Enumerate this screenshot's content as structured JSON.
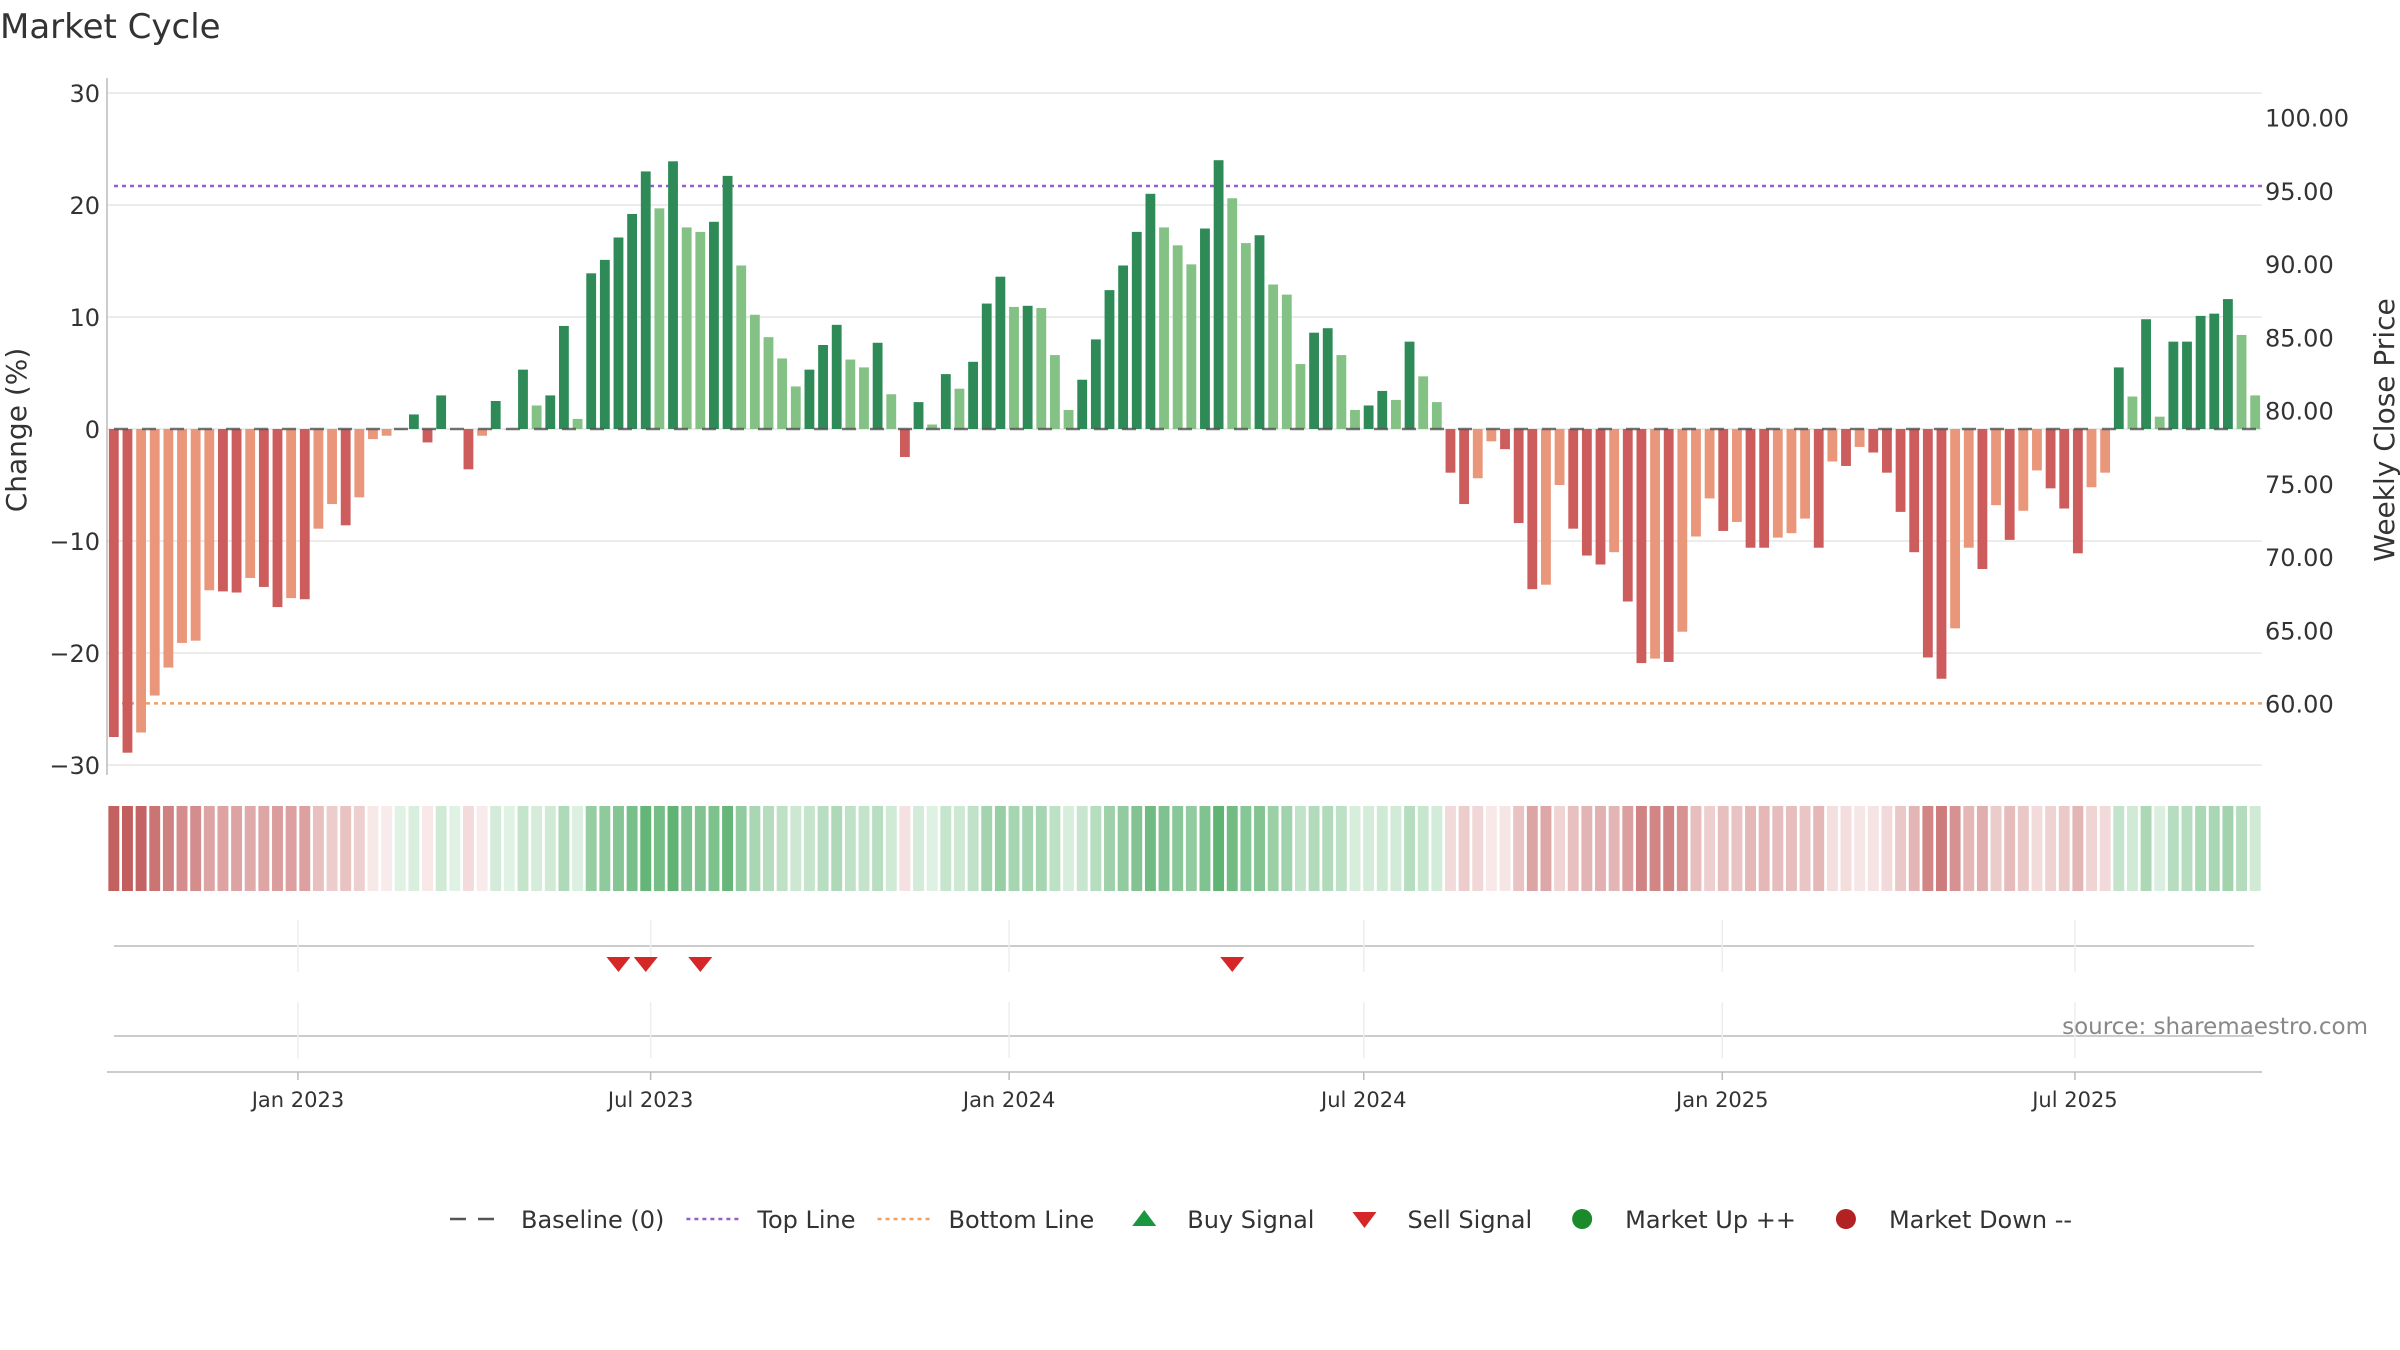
{
  "chart_data": {
    "type": "bar",
    "title": "Market Cycle",
    "ylabel_left": "Change (%)",
    "ylabel_right": "Weekly Close Price",
    "ylim_left": [
      -30,
      30
    ],
    "ylim_right": [
      55,
      100
    ],
    "left_ticks": [
      "30",
      "20",
      "10",
      "0",
      "−10",
      "−20",
      "−30"
    ],
    "left_tick_values": [
      30,
      20,
      10,
      0,
      -10,
      -20,
      -30
    ],
    "right_ticks": [
      "100.00",
      "95.00",
      "90.00",
      "85.00",
      "80.00",
      "75.00",
      "70.00",
      "65.00",
      "60.00"
    ],
    "right_tick_values": [
      100,
      95,
      90,
      85,
      80,
      75,
      70,
      65,
      60
    ],
    "x_start": "2022-09-25",
    "x_ticks": [
      {
        "label": "Jan 2023",
        "date": "2023-01-01"
      },
      {
        "label": "Jul 2023",
        "date": "2023-07-01"
      },
      {
        "label": "Jan 2024",
        "date": "2024-01-01"
      },
      {
        "label": "Jul 2024",
        "date": "2024-07-01"
      },
      {
        "label": "Jan 2025",
        "date": "2025-01-01"
      },
      {
        "label": "Jul 2025",
        "date": "2025-07-01"
      }
    ],
    "top_line": 21.7,
    "bottom_line": -24.5,
    "values": [
      -27.5,
      -28.9,
      -27.1,
      -23.8,
      -21.3,
      -19.1,
      -18.9,
      -14.4,
      -14.5,
      -14.6,
      -13.3,
      -14.1,
      -15.9,
      -15.1,
      -15.2,
      -8.9,
      -6.7,
      -8.6,
      -6.1,
      -0.9,
      -0.6,
      0.0,
      1.3,
      -1.2,
      3.0,
      0.0,
      -3.6,
      -0.6,
      2.5,
      0.0,
      5.3,
      2.1,
      3.0,
      9.2,
      0.9,
      13.9,
      15.1,
      17.1,
      19.2,
      23.0,
      19.7,
      23.9,
      18.0,
      17.6,
      18.5,
      22.6,
      14.6,
      10.2,
      8.2,
      6.3,
      3.8,
      5.3,
      7.5,
      9.3,
      6.2,
      5.5,
      7.7,
      3.1,
      -2.5,
      2.4,
      0.4,
      4.9,
      3.6,
      6.0,
      11.2,
      13.6,
      10.9,
      11.0,
      10.8,
      6.6,
      1.7,
      4.4,
      8.0,
      12.4,
      14.6,
      17.6,
      21.0,
      18.0,
      16.4,
      14.7,
      17.9,
      24.0,
      20.6,
      16.6,
      17.3,
      12.9,
      12.0,
      5.8,
      8.6,
      9.0,
      6.6,
      1.7,
      2.1,
      3.4,
      2.6,
      7.8,
      4.7,
      2.4,
      -3.9,
      -6.7,
      -4.4,
      -1.1,
      -1.8,
      -8.4,
      -14.3,
      -13.9,
      -5.0,
      -8.9,
      -11.3,
      -12.1,
      -11.0,
      -15.4,
      -20.9,
      -20.5,
      -20.8,
      -18.1,
      -9.6,
      -6.2,
      -9.1,
      -8.3,
      -10.6,
      -10.6,
      -9.7,
      -9.3,
      -8.0,
      -10.6,
      -2.9,
      -3.3,
      -1.6,
      -2.1,
      -3.9,
      -7.4,
      -11.0,
      -20.4,
      -22.3,
      -17.8,
      -10.6,
      -12.5,
      -6.8,
      -9.9,
      -7.3,
      -3.7,
      -5.3,
      -7.1,
      -11.1,
      -5.2,
      -3.9,
      5.5,
      2.9,
      9.8,
      1.1,
      7.8,
      7.8,
      10.1,
      10.3,
      11.6,
      8.4,
      3.0
    ],
    "sell_signals": [
      "2023-06-11",
      "2023-06-25",
      "2023-07-23",
      "2024-04-21"
    ],
    "buy_signals": [],
    "source": "source: sharemaestro.com",
    "legend": [
      {
        "label": "Baseline (0)",
        "symbol": "dash",
        "color": "#555555"
      },
      {
        "label": "Top Line",
        "symbol": "dotted",
        "color": "#9b59d0"
      },
      {
        "label": "Bottom Line",
        "symbol": "dotted",
        "color": "#f0a060"
      },
      {
        "label": "Buy Signal",
        "symbol": "triangle-up",
        "color": "#1a9641"
      },
      {
        "label": "Sell Signal",
        "symbol": "triangle-down",
        "color": "#d62728"
      },
      {
        "label": "Market Up ++",
        "symbol": "circle",
        "color": "#1a8a2a"
      },
      {
        "label": "Market Down --",
        "symbol": "circle",
        "color": "#b22222"
      }
    ],
    "colors": {
      "up_dark": "#2e8b57",
      "up_light": "#84c184",
      "down_dark": "#cd5c5c",
      "down_light": "#e9967a",
      "grid": "#e6e6e6",
      "axis": "#bbbbbb"
    }
  }
}
